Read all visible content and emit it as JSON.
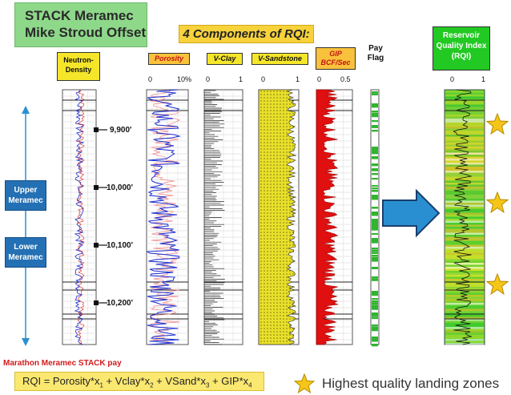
{
  "title": {
    "line1": "STACK Meramec",
    "line2": "Mike Stroud Offset"
  },
  "components_label": "4 Components of RQI:",
  "tracks": {
    "neutron": {
      "label": "Neutron-Density"
    },
    "porosity": {
      "label": "Porosity",
      "scale_min": "0",
      "scale_max": "10%"
    },
    "vclay": {
      "label": "V-Clay",
      "scale_min": "0",
      "scale_max": "1"
    },
    "vsand": {
      "label": "V-Sandstone",
      "scale_min": "0",
      "scale_max": "1"
    },
    "gip": {
      "label": "GIP BCF/Sec",
      "scale_min": "0",
      "scale_max": "0.5"
    },
    "pay": {
      "label": "Pay Flag"
    },
    "rqi": {
      "label": "Reservoir Quality Index (RQI)",
      "scale_min": "0",
      "scale_max": "1"
    }
  },
  "depths": [
    "9,900'",
    "10,000'",
    "10,100'",
    "10,200'"
  ],
  "zones": {
    "upper": "Upper Meramec",
    "lower": "Lower Meramec"
  },
  "footer": {
    "source": "Marathon Meramec STACK pay",
    "formula": {
      "prefix": "RQI = Porosity*x",
      "s1": "1",
      "t2": " + Vclay*x",
      "s2": "2",
      "t3": " + VSand*x",
      "s3": "3",
      "t4": " + GIP*x",
      "s4": "4"
    },
    "legend": "Highest quality landing zones"
  },
  "colors": {
    "title_bg": "#8ed88a",
    "component_bg": "#f7d23a",
    "header_bg": "#f5e62a",
    "rqi_header_bg": "#22c922",
    "zone_bg": "#2470b4",
    "arrow": "#2a8fd0",
    "star": "#f5c518",
    "porosity_curve": "#1a2bd0",
    "gip_fill": "#e01010",
    "vsand_fill": "#e8e02a"
  },
  "icons": [
    "up-down-arrow-icon",
    "right-arrow-icon",
    "star-icon"
  ]
}
